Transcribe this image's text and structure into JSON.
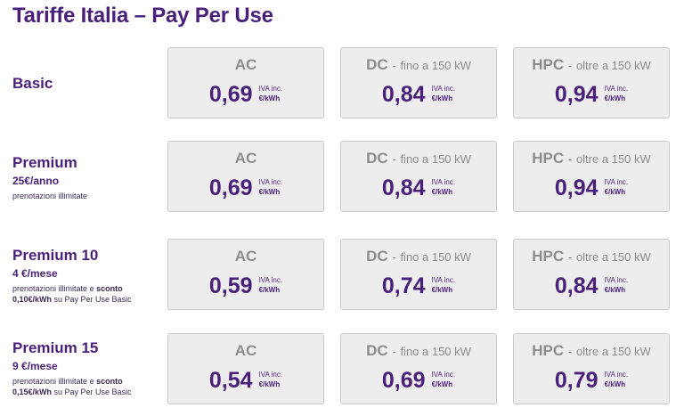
{
  "title": "Tariffe Italia – Pay Per Use",
  "columns": {
    "ac": {
      "label": "AC",
      "sub": ""
    },
    "dc": {
      "label": "DC",
      "sub": "fino a 150 kW"
    },
    "hpc": {
      "label": "HPC",
      "sub": "oltre a 150 kW"
    }
  },
  "vat_label": "IVA inc.",
  "unit_label": "€/kWh",
  "separator": "-",
  "plans": [
    {
      "name": "Basic",
      "price": "",
      "note_a": "",
      "note_b": "",
      "note_c": "",
      "rates": {
        "ac": "0,69",
        "dc": "0,84",
        "hpc": "0,94"
      }
    },
    {
      "name": "Premium",
      "price": "25€/anno",
      "note_a": "prenotazioni illimitate",
      "note_b": "",
      "note_c": "",
      "rates": {
        "ac": "0,69",
        "dc": "0,84",
        "hpc": "0,94"
      }
    },
    {
      "name": "Premium 10",
      "price": "4 €/mese",
      "note_a": "prenotazioni illimitate e ",
      "note_b": "sconto",
      "note_c": "0,10€/kWh",
      "note_d": " su Pay Per Use Basic",
      "rates": {
        "ac": "0,59",
        "dc": "0,74",
        "hpc": "0,84"
      }
    },
    {
      "name": "Premium 15",
      "price": "9 €/mese",
      "note_a": "prenotazioni illimitate e ",
      "note_b": "sconto",
      "note_c": "0,15€/kWh",
      "note_d": " su Pay Per Use Basic",
      "rates": {
        "ac": "0,54",
        "dc": "0,69",
        "hpc": "0,79"
      }
    }
  ]
}
